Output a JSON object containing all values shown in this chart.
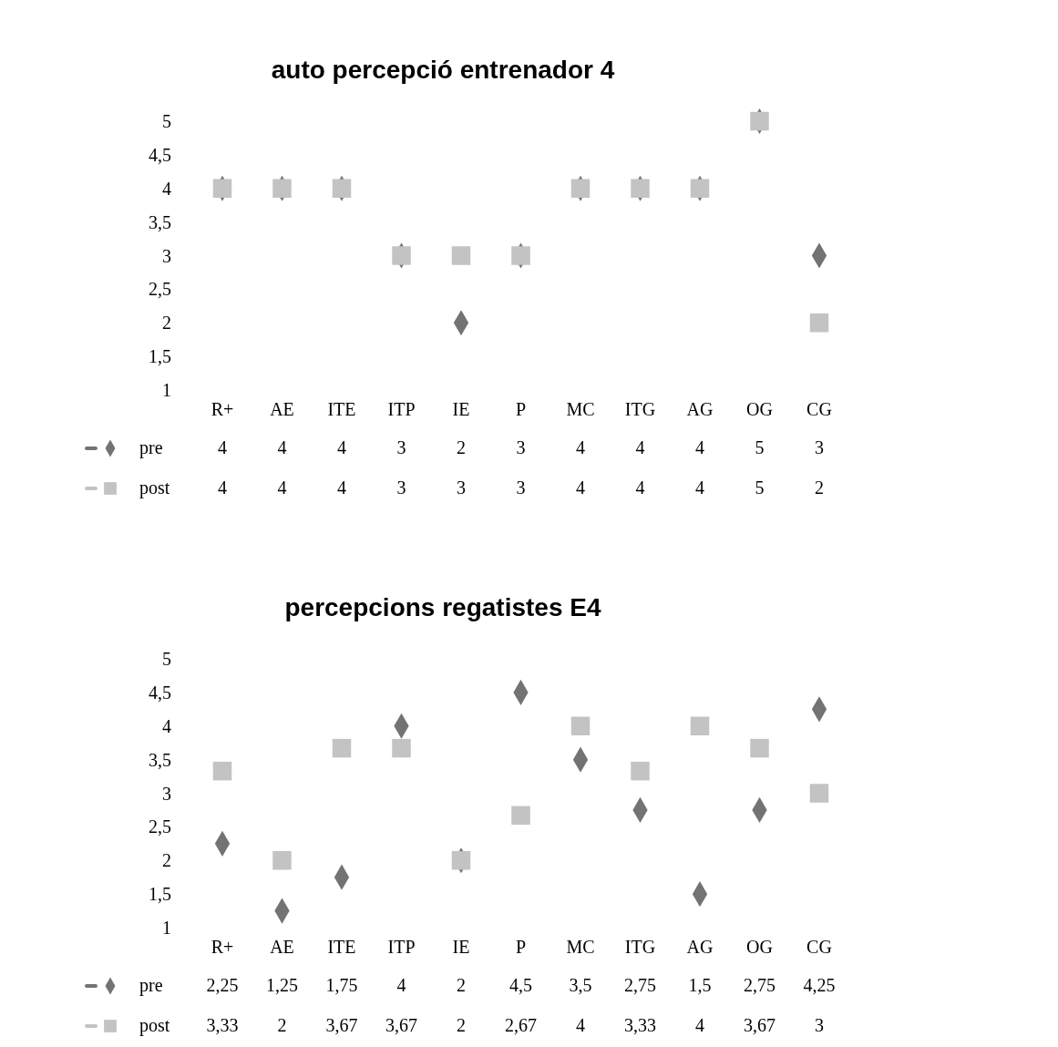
{
  "chart_data": [
    {
      "type": "scatter",
      "title": "auto percepció entrenador 4",
      "categories": [
        "R+",
        "AE",
        "ITE",
        "ITP",
        "IE",
        "P",
        "MC",
        "ITG",
        "AG",
        "OG",
        "CG"
      ],
      "ylim": [
        1,
        5
      ],
      "yticks": [
        1,
        {
          "value": 1.5,
          "label": "1,5"
        },
        2,
        {
          "value": 2.5,
          "label": "2,5"
        },
        3,
        {
          "value": 3.5,
          "label": "3,5"
        },
        4,
        {
          "value": 4.5,
          "label": "4,5"
        },
        5
      ],
      "grid": false,
      "legend": "bottom",
      "series": [
        {
          "name": "pre",
          "color": "#737373",
          "marker": "diamond",
          "values": [
            4,
            4,
            4,
            3,
            2,
            3,
            4,
            4,
            4,
            5,
            3
          ],
          "value_labels": [
            "4",
            "4",
            "4",
            "3",
            "2",
            "3",
            "4",
            "4",
            "4",
            "5",
            "3"
          ]
        },
        {
          "name": "post",
          "color": "#c3c3c3",
          "marker": "square",
          "values": [
            4,
            4,
            4,
            3,
            3,
            3,
            4,
            4,
            4,
            5,
            2
          ],
          "value_labels": [
            "4",
            "4",
            "4",
            "3",
            "3",
            "3",
            "4",
            "4",
            "4",
            "5",
            "2"
          ]
        }
      ]
    },
    {
      "type": "scatter",
      "title": "percepcions regatistes E4",
      "categories": [
        "R+",
        "AE",
        "ITE",
        "ITP",
        "IE",
        "P",
        "MC",
        "ITG",
        "AG",
        "OG",
        "CG"
      ],
      "ylim": [
        1,
        5
      ],
      "yticks": [
        1,
        {
          "value": 1.5,
          "label": "1,5"
        },
        2,
        {
          "value": 2.5,
          "label": "2,5"
        },
        3,
        {
          "value": 3.5,
          "label": "3,5"
        },
        4,
        {
          "value": 4.5,
          "label": "4,5"
        },
        5
      ],
      "grid": false,
      "legend": "bottom",
      "series": [
        {
          "name": "pre",
          "color": "#737373",
          "marker": "diamond",
          "values": [
            2.25,
            1.25,
            1.75,
            4,
            2,
            4.5,
            3.5,
            2.75,
            1.5,
            2.75,
            4.25
          ],
          "value_labels": [
            "2,25",
            "1,25",
            "1,75",
            "4",
            "2",
            "4,5",
            "3,5",
            "2,75",
            "1,5",
            "2,75",
            "4,25"
          ]
        },
        {
          "name": "post",
          "color": "#c3c3c3",
          "marker": "square",
          "values": [
            3.33,
            2,
            3.67,
            3.67,
            2,
            2.67,
            4,
            3.33,
            4,
            3.67,
            3
          ],
          "value_labels": [
            "3,33",
            "2",
            "3,67",
            "3,67",
            "2",
            "2,67",
            "4",
            "3,33",
            "4",
            "3,67",
            "3"
          ]
        }
      ]
    }
  ]
}
